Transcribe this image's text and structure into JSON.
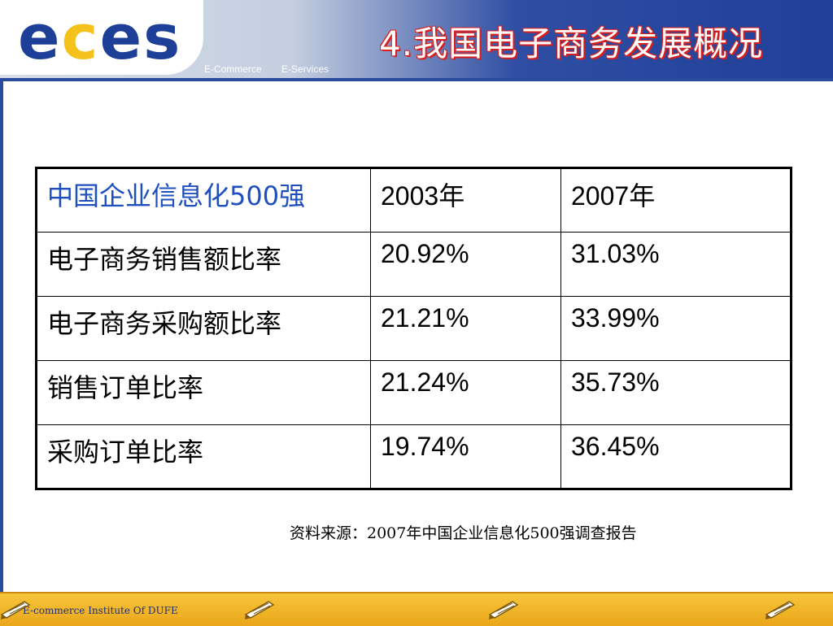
{
  "header": {
    "logo": {
      "part1": "e",
      "part2": "c",
      "part3": "es"
    },
    "taglines": [
      "E-Commerce",
      "E-Services"
    ],
    "title": "4.我国电子商务发展概况"
  },
  "table": {
    "header": {
      "label": "中国企业信息化500强",
      "y2003": "2003年",
      "y2007": "2007年"
    },
    "rows": [
      {
        "label": "电子商务销售额比率",
        "y2003": "20.92%",
        "y2007": "31.03%"
      },
      {
        "label": "电子商务采购额比率",
        "y2003": "21.21%",
        "y2007": "33.99%"
      },
      {
        "label": "销售订单比率",
        "y2003": "21.24%",
        "y2007": "35.73%"
      },
      {
        "label": "采购订单比率",
        "y2003": "19.74%",
        "y2007": "36.45%"
      }
    ]
  },
  "source": "资料来源：2007年中国企业信息化500强调查报告",
  "footer": {
    "text": "E-commerce Institute Of DUFE"
  },
  "colors": {
    "header_blue": "#1f3f99",
    "logo_yellow": "#f4c21a",
    "title_outline": "#d91e1e",
    "footer_gold": "#eaa61a",
    "header_label_blue": "#1f4fbf"
  }
}
